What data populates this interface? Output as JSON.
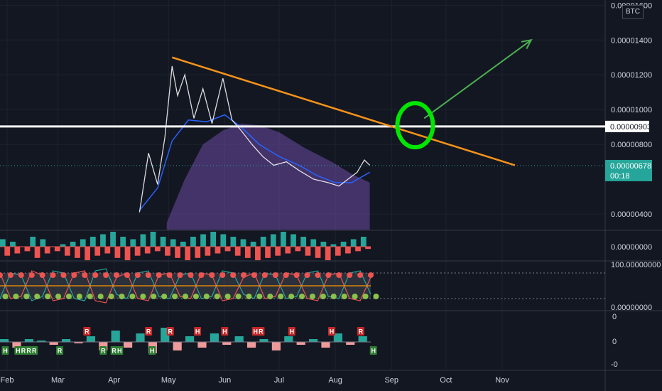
{
  "chart_data": [
    {
      "type": "line",
      "pane": "price",
      "currency": "BTC",
      "x_ticks": [
        "Feb",
        "Mar",
        "Apr",
        "May",
        "Jun",
        "Jul",
        "Aug",
        "Sep",
        "Oct",
        "Nov"
      ],
      "y_ticks": [
        "0.00001600",
        "0.00001400",
        "0.00001200",
        "0.00001000",
        "0.00000800",
        "0.00000400"
      ],
      "ylim": [
        3.1e-06,
        1.63e-05
      ],
      "horizontal_level": {
        "value": "0.00000903",
        "color": "#ffffff"
      },
      "last_price": {
        "value": "0.00000678",
        "countdown": "00:18",
        "color": "#26a69a"
      },
      "series": [
        {
          "color": "#ffffff",
          "x": [
            "2021-04-15",
            "2021-04-20",
            "2021-04-25",
            "2021-04-29",
            "2021-05-03",
            "2021-05-06",
            "2021-05-10",
            "2021-05-15",
            "2021-05-20",
            "2021-05-25",
            "2021-05-31",
            "2021-06-05",
            "2021-06-10",
            "2021-06-16",
            "2021-06-22",
            "2021-06-28",
            "2021-07-05",
            "2021-07-12",
            "2021-07-20",
            "2021-07-28",
            "2021-08-03",
            "2021-08-08",
            "2021-08-13",
            "2021-08-17",
            "2021-08-20"
          ],
          "y": [
            4.1e-06,
            7.5e-06,
            5.7e-06,
            8.4e-06,
            1.25e-05,
            1.08e-05,
            1.2e-05,
            9.5e-06,
            1.12e-05,
            9.2e-06,
            1.18e-05,
            9.4e-06,
            8.8e-06,
            8e-06,
            7.3e-06,
            6.8e-06,
            7e-06,
            6.5e-06,
            6e-06,
            5.8e-06,
            5.6e-06,
            6e-06,
            6.4e-06,
            7.1e-06,
            6.8e-06
          ]
        },
        {
          "color": "#2962ff",
          "x": [
            "2021-04-15",
            "2021-04-25",
            "2021-05-03",
            "2021-05-12",
            "2021-05-22",
            "2021-06-01",
            "2021-06-10",
            "2021-06-20",
            "2021-07-01",
            "2021-07-12",
            "2021-07-22",
            "2021-08-01",
            "2021-08-10",
            "2021-08-20"
          ],
          "y": [
            4.2e-06,
            5.5e-06,
            8.2e-06,
            9.4e-06,
            9.3e-06,
            9.7e-06,
            9e-06,
            8e-06,
            7.3e-06,
            6.8e-06,
            6.2e-06,
            5.8e-06,
            5.8e-06,
            6.4e-06
          ]
        },
        {
          "color": "#7e57c2",
          "x": [
            "2021-04-30",
            "2021-05-10",
            "2021-05-20",
            "2021-05-31",
            "2021-06-10",
            "2021-06-20",
            "2021-07-01",
            "2021-07-15",
            "2021-07-30",
            "2021-08-10",
            "2021-08-20"
          ],
          "y": [
            3.5e-06,
            6e-06,
            8e-06,
            8.8e-06,
            9.2e-06,
            9.1e-06,
            8.7e-06,
            7.8e-06,
            7e-06,
            6.3e-06,
            5.8e-06
          ]
        }
      ],
      "trendline": {
        "color": "#f7931a",
        "x": [
          "2021-05-03",
          "2021-11-08"
        ],
        "y": [
          1.3e-05,
          6.8e-06
        ]
      },
      "projection_arrow": {
        "color": "#4caf50",
        "x": [
          "2021-09-19",
          "2021-11-17"
        ],
        "y": [
          9.5e-06,
          1.4e-05
        ]
      },
      "circle_marker": {
        "color": "#00e600",
        "x": "2021-09-14",
        "y": 9.1e-06
      }
    },
    {
      "type": "bar",
      "pane": "histogram",
      "y_ticks": [
        "0.00000000"
      ],
      "series": [
        {
          "name": "",
          "color": "#26a69a",
          "values": [
            3,
            2,
            -1,
            4,
            3,
            -2,
            1,
            2,
            3,
            4,
            5,
            6,
            4,
            3,
            5,
            6,
            4,
            3,
            2,
            4,
            5,
            6,
            5,
            4,
            3,
            2,
            4,
            5,
            6,
            5,
            4,
            3,
            2,
            1,
            2,
            3,
            4
          ]
        },
        {
          "name": "",
          "color": "#ef5350",
          "values": [
            -4,
            -3,
            -2,
            -5,
            -3,
            -2,
            -4,
            -5,
            -6,
            -4,
            -3,
            -5,
            -6,
            -4,
            -3,
            -2,
            -4,
            -5,
            -6,
            -5,
            -4,
            -3,
            -2,
            -4,
            -5,
            -6,
            -5,
            -4,
            -3,
            -2,
            -4,
            -5,
            -6,
            -4,
            -3,
            -2,
            -1
          ]
        }
      ]
    },
    {
      "type": "line",
      "pane": "oscillator",
      "ylim": [
        0,
        100
      ],
      "y_ticks": [
        "100.00000000",
        "0.00000000"
      ],
      "series": [
        {
          "name": "",
          "color": "#26a69a",
          "values": [
            20,
            80,
            75,
            15,
            25,
            85,
            80,
            20,
            15,
            85,
            90,
            30,
            20,
            80,
            85,
            25,
            20,
            75,
            80,
            20,
            25,
            85,
            80,
            30,
            20,
            80,
            75,
            20,
            25,
            80,
            85,
            25,
            20,
            80,
            85,
            30
          ]
        },
        {
          "name": "",
          "color": "#ef5350",
          "values": [
            80,
            20,
            25,
            85,
            75,
            15,
            20,
            80,
            85,
            15,
            10,
            70,
            80,
            20,
            15,
            75,
            80,
            25,
            20,
            80,
            75,
            15,
            20,
            70,
            80,
            20,
            25,
            80,
            75,
            20,
            15,
            75,
            80,
            20,
            15,
            70
          ]
        },
        {
          "name": "",
          "color": "#ff9800",
          "values": [
            50,
            50,
            50,
            50,
            50,
            50,
            50,
            50,
            50,
            50,
            50,
            50,
            50,
            50,
            50,
            50,
            50,
            50,
            50,
            50,
            50,
            50,
            50,
            50,
            50,
            50,
            50,
            50,
            50,
            50,
            50,
            50,
            50,
            50,
            50,
            50
          ]
        }
      ]
    },
    {
      "type": "bar",
      "pane": "signals",
      "y_ticks": [
        "0",
        "0",
        "-0"
      ],
      "values": [
        0.1,
        -0.2,
        0.1,
        0.05,
        -0.1,
        0.1,
        -0.05,
        0.2,
        -0.3,
        0.4,
        -0.2,
        0.3,
        -0.4,
        0.5,
        -0.3,
        0.2,
        -0.2,
        0.3,
        -0.1,
        0.2,
        -0.2,
        0.1,
        -0.3,
        0.2,
        -0.1,
        0.1,
        -0.2,
        0.3,
        -0.1,
        0.2
      ],
      "markers": [
        {
          "label": "H",
          "color": "#2e7d32",
          "pos": "below",
          "x": "2021-01-31"
        },
        {
          "label": "H",
          "color": "#2e7d32",
          "pos": "below",
          "x": "2021-02-07"
        },
        {
          "label": "R",
          "color": "#2e7d32",
          "pos": "below",
          "x": "2021-02-10"
        },
        {
          "label": "R",
          "color": "#2e7d32",
          "pos": "below",
          "x": "2021-02-13"
        },
        {
          "label": "R",
          "color": "#2e7d32",
          "pos": "below",
          "x": "2021-02-16"
        },
        {
          "label": "R",
          "color": "#2e7d32",
          "pos": "below",
          "x": "2021-03-02"
        },
        {
          "label": "R",
          "color": "#c62828",
          "pos": "above",
          "x": "2021-03-17"
        },
        {
          "label": "R",
          "color": "#2e7d32",
          "pos": "below",
          "x": "2021-03-26"
        },
        {
          "label": "R",
          "color": "#2e7d32",
          "pos": "below",
          "x": "2021-04-01"
        },
        {
          "label": "H",
          "color": "#2e7d32",
          "pos": "below",
          "x": "2021-04-04"
        },
        {
          "label": "R",
          "color": "#c62828",
          "pos": "above",
          "x": "2021-04-20"
        },
        {
          "label": "H",
          "color": "#2e7d32",
          "pos": "below",
          "x": "2021-04-22"
        },
        {
          "label": "R",
          "color": "#c62828",
          "pos": "above",
          "x": "2021-05-02"
        },
        {
          "label": "H",
          "color": "#c62828",
          "pos": "above",
          "x": "2021-05-17"
        },
        {
          "label": "H",
          "color": "#c62828",
          "pos": "above",
          "x": "2021-06-01"
        },
        {
          "label": "H",
          "color": "#c62828",
          "pos": "above",
          "x": "2021-06-18"
        },
        {
          "label": "R",
          "color": "#c62828",
          "pos": "above",
          "x": "2021-06-21"
        },
        {
          "label": "H",
          "color": "#c62828",
          "pos": "above",
          "x": "2021-07-08"
        },
        {
          "label": "H",
          "color": "#c62828",
          "pos": "above",
          "x": "2021-07-30"
        },
        {
          "label": "R",
          "color": "#c62828",
          "pos": "above",
          "x": "2021-08-15"
        },
        {
          "label": "H",
          "color": "#2e7d32",
          "pos": "below",
          "x": "2021-08-22"
        }
      ]
    }
  ]
}
